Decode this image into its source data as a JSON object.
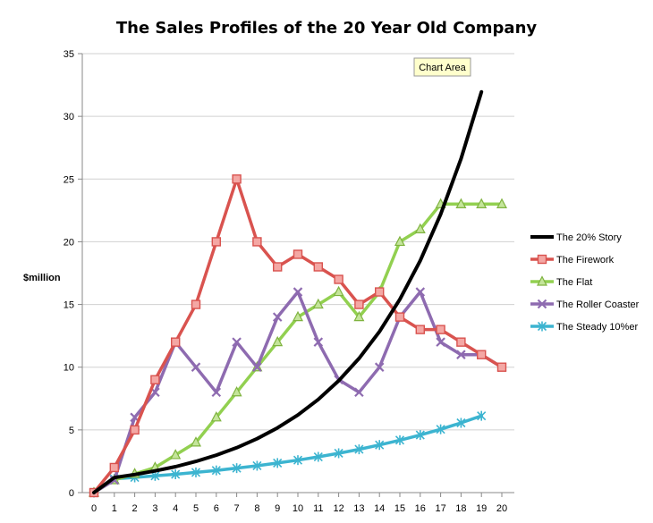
{
  "chart_data": {
    "type": "line",
    "title": "The Sales Profiles of the 20 Year Old Company",
    "ylabel": "$million",
    "xlabel": "",
    "x": [
      0,
      1,
      2,
      3,
      4,
      5,
      6,
      7,
      8,
      9,
      10,
      11,
      12,
      13,
      14,
      15,
      16,
      17,
      18,
      19,
      20
    ],
    "ylim": [
      0,
      35
    ],
    "yticks": [
      0,
      5,
      10,
      15,
      20,
      25,
      30,
      35
    ],
    "grid": true,
    "legend_position": "right",
    "tooltip": "Chart Area",
    "series": [
      {
        "name": "The 20% Story",
        "color": "#000000",
        "marker": "none",
        "values": [
          0,
          1.2,
          1.44,
          1.73,
          2.07,
          2.49,
          2.99,
          3.58,
          4.3,
          5.16,
          6.19,
          7.43,
          8.92,
          10.7,
          12.84,
          15.41,
          18.49,
          22.19,
          26.62,
          31.95,
          null
        ]
      },
      {
        "name": "The Firework",
        "color": "#d9534f",
        "marker": "square",
        "values": [
          0,
          2,
          5,
          9,
          12,
          15,
          20,
          25,
          20,
          18,
          19,
          18,
          17,
          15,
          16,
          14,
          13,
          13,
          12,
          11,
          10
        ]
      },
      {
        "name": "The Flat",
        "color": "#92d050",
        "marker": "triangle",
        "values": [
          0,
          1,
          1.5,
          2,
          3,
          4,
          6,
          8,
          10,
          12,
          14,
          15,
          16,
          14,
          16,
          20,
          21,
          23,
          23,
          23,
          23
        ]
      },
      {
        "name": "The Roller Coaster",
        "color": "#8e6bb0",
        "marker": "x",
        "values": [
          0,
          1,
          6,
          8,
          12,
          10,
          8,
          12,
          10,
          14,
          16,
          12,
          9,
          8,
          10,
          14,
          16,
          12,
          11,
          11,
          10
        ]
      },
      {
        "name": "The Steady 10%er",
        "color": "#3cb4d0",
        "marker": "star",
        "values": [
          0,
          1.1,
          1.21,
          1.33,
          1.46,
          1.61,
          1.77,
          1.95,
          2.14,
          2.36,
          2.59,
          2.85,
          3.14,
          3.45,
          3.8,
          4.18,
          4.59,
          5.05,
          5.56,
          6.12,
          null
        ]
      }
    ]
  }
}
